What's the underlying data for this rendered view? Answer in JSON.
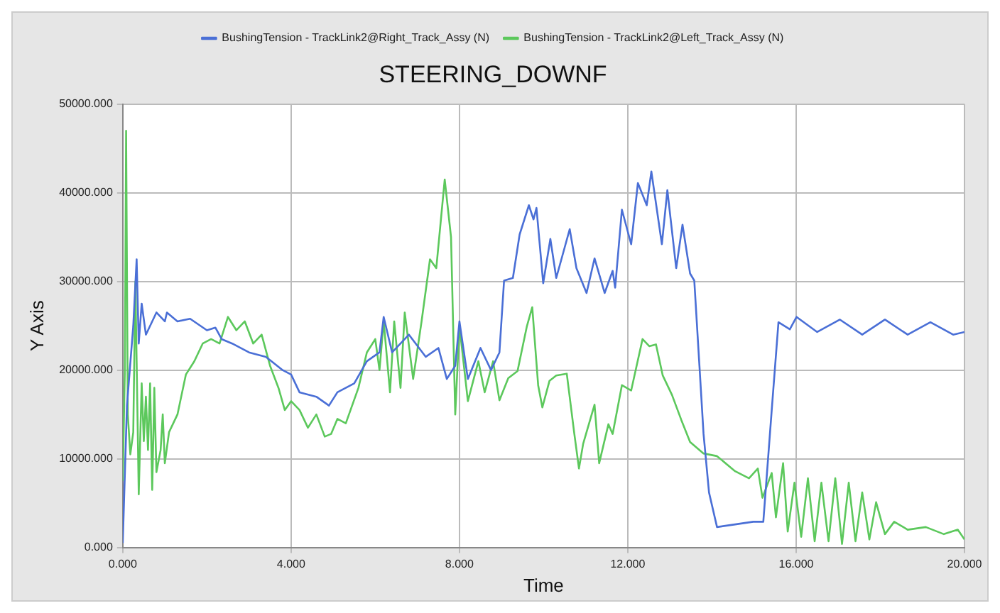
{
  "chart_data": {
    "type": "line",
    "title": "STEERING_DOWNF",
    "xlabel": "Time",
    "ylabel": "Y Axis",
    "legend": "top",
    "grid": true,
    "marker": "none",
    "line_style": "solid",
    "xlim": [
      0,
      20
    ],
    "xticks": [
      {
        "value": 0,
        "label": "0.000"
      },
      {
        "value": 4,
        "label": "4.000"
      },
      {
        "value": 8,
        "label": "8.000"
      },
      {
        "value": 12,
        "label": "12.000"
      },
      {
        "value": 16,
        "label": "16.000"
      },
      {
        "value": 20,
        "label": "20.000"
      }
    ],
    "ylim": [
      0,
      50000
    ],
    "yticks": [
      {
        "value": 0,
        "label": "0.000"
      },
      {
        "value": 10000,
        "label": "10000.000"
      },
      {
        "value": 20000,
        "label": "20000.000"
      },
      {
        "value": 30000,
        "label": "30000.000"
      },
      {
        "value": 40000,
        "label": "40000.000"
      },
      {
        "value": 50000,
        "label": "50000.000"
      }
    ],
    "series": [
      {
        "name": "BushingTension - TrackLink2@Right_Track_Assy (N)",
        "color": "#4a6fd6",
        "x": [
          0,
          0.1,
          0.25,
          0.33,
          0.38,
          0.45,
          0.55,
          0.8,
          1.0,
          1.05,
          1.3,
          1.6,
          2.0,
          2.2,
          2.35,
          2.6,
          3.0,
          3.4,
          3.8,
          4.0,
          4.2,
          4.6,
          4.9,
          5.1,
          5.5,
          5.8,
          6.1,
          6.2,
          6.4,
          6.8,
          7.2,
          7.5,
          7.7,
          7.9,
          8.0,
          8.2,
          8.5,
          8.75,
          8.95,
          9.06,
          9.27,
          9.43,
          9.65,
          9.76,
          9.83,
          9.99,
          10.16,
          10.3,
          10.62,
          10.78,
          11.02,
          11.21,
          11.45,
          11.64,
          11.7,
          11.86,
          12.08,
          12.24,
          12.45,
          12.56,
          12.81,
          12.94,
          13.15,
          13.3,
          13.48,
          13.58,
          13.8,
          13.93,
          14.12,
          14.55,
          14.98,
          15.22,
          15.42,
          15.58,
          15.85,
          16.01,
          16.5,
          17.04,
          17.57,
          18.11,
          18.65,
          19.19,
          19.73,
          20
        ],
        "values": [
          500,
          16000,
          25000,
          32500,
          23000,
          27500,
          24000,
          26500,
          25500,
          26500,
          25500,
          25800,
          24500,
          24800,
          23500,
          23000,
          22000,
          21500,
          20000,
          19500,
          17500,
          17000,
          16000,
          17500,
          18500,
          21000,
          22000,
          26000,
          22000,
          24000,
          21500,
          22500,
          19000,
          20500,
          25500,
          19000,
          22500,
          20000,
          22000,
          30100,
          30400,
          35300,
          38600,
          37000,
          38300,
          29800,
          34800,
          30400,
          35900,
          31500,
          28700,
          32600,
          28700,
          31200,
          29300,
          38100,
          34200,
          41100,
          38600,
          42400,
          34200,
          40300,
          31500,
          36400,
          30900,
          30100,
          12800,
          6200,
          2300,
          2600,
          2900,
          2900,
          15500,
          25400,
          24600,
          26000,
          24300,
          25700,
          24000,
          25700,
          24000,
          25400,
          24000,
          24300
        ]
      },
      {
        "name": "BushingTension - TrackLink2@Left_Track_Assy (N)",
        "color": "#5cc85c",
        "x": [
          0,
          0.05,
          0.08,
          0.12,
          0.18,
          0.25,
          0.3,
          0.38,
          0.45,
          0.5,
          0.55,
          0.6,
          0.65,
          0.7,
          0.75,
          0.8,
          0.9,
          0.95,
          1.0,
          1.1,
          1.3,
          1.5,
          1.7,
          1.9,
          2.1,
          2.3,
          2.5,
          2.7,
          2.9,
          3.1,
          3.3,
          3.5,
          3.7,
          3.85,
          4.0,
          4.2,
          4.4,
          4.6,
          4.8,
          4.95,
          5.1,
          5.3,
          5.6,
          5.8,
          6.0,
          6.1,
          6.2,
          6.35,
          6.45,
          6.6,
          6.7,
          6.9,
          7.1,
          7.3,
          7.45,
          7.65,
          7.8,
          7.9,
          8.0,
          8.2,
          8.45,
          8.6,
          8.8,
          8.95,
          9.16,
          9.38,
          9.6,
          9.73,
          9.87,
          9.97,
          10.14,
          10.3,
          10.55,
          10.73,
          10.84,
          10.94,
          11.21,
          11.32,
          11.54,
          11.64,
          11.86,
          12.08,
          12.35,
          12.51,
          12.67,
          12.83,
          13.05,
          13.27,
          13.48,
          13.8,
          14.12,
          14.55,
          14.88,
          15.09,
          15.2,
          15.42,
          15.52,
          15.69,
          15.8,
          15.96,
          16.12,
          16.28,
          16.44,
          16.6,
          16.77,
          16.93,
          17.09,
          17.25,
          17.41,
          17.57,
          17.74,
          17.9,
          18.11,
          18.33,
          18.65,
          19.08,
          19.51,
          19.84,
          20
        ],
        "values": [
          7500,
          20000,
          47000,
          15000,
          10500,
          13000,
          30000,
          6000,
          18500,
          12000,
          17000,
          11000,
          18500,
          6500,
          18000,
          8500,
          11000,
          15000,
          9500,
          13000,
          15000,
          19500,
          21000,
          23000,
          23500,
          23000,
          26000,
          24500,
          25500,
          23000,
          24000,
          20500,
          18000,
          15500,
          16500,
          15500,
          13500,
          15000,
          12500,
          12800,
          14500,
          14000,
          18000,
          22000,
          23500,
          20000,
          25500,
          17500,
          25500,
          18000,
          26500,
          19000,
          25500,
          32500,
          31500,
          41500,
          35000,
          15000,
          25000,
          16500,
          21000,
          17500,
          21000,
          16600,
          19100,
          19900,
          24900,
          27100,
          18300,
          15800,
          18800,
          19400,
          19600,
          12800,
          8900,
          11700,
          16100,
          9500,
          13900,
          12800,
          18300,
          17700,
          23500,
          22700,
          22900,
          19400,
          17200,
          14400,
          11900,
          10600,
          10300,
          8600,
          7800,
          8900,
          5600,
          8400,
          3400,
          9500,
          1800,
          7300,
          1200,
          7800,
          700,
          7300,
          700,
          7800,
          400,
          7300,
          700,
          6200,
          900,
          5100,
          1500,
          2900,
          2000,
          2300,
          1500,
          2000,
          900
        ]
      }
    ]
  }
}
